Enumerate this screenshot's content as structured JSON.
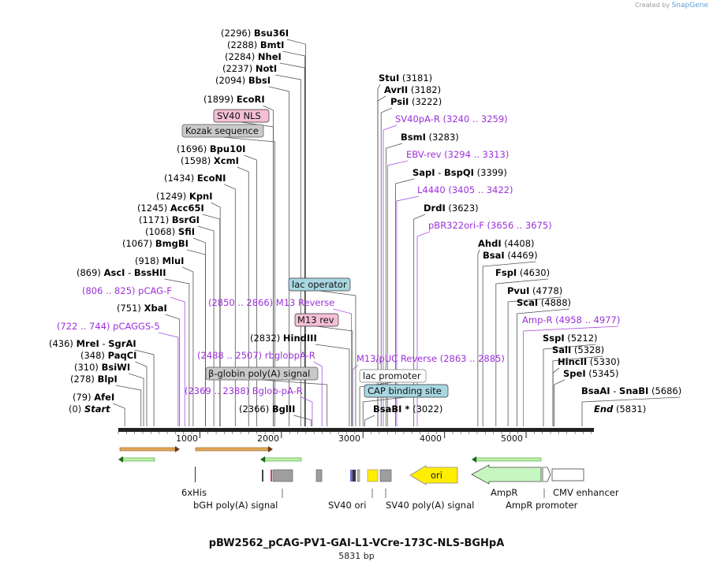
{
  "credit": {
    "prefix": "Created by",
    "brand": "SnapGene"
  },
  "plasmid": {
    "name": "pBW2562_pCAG-PV1-GAI-L1-VCre-173C-NLS-BGHpA",
    "size_label": "5831 bp",
    "length": 5831
  },
  "colors": {
    "enzyme": "#111111",
    "primer": "#9b30d9",
    "primer_line": "#a64ee0",
    "line": "#555555"
  },
  "ticks": [
    "1000",
    "2000",
    "3000",
    "4000",
    "5000"
  ],
  "enzymes": [
    {
      "pos": "(0)",
      "name": "Start",
      "italic": true,
      "bp": 0
    },
    {
      "pos": "(79)",
      "name": "AfeI",
      "bp": 79
    },
    {
      "pos": "(278)",
      "name": "BlpI",
      "bp": 278
    },
    {
      "pos": "(310)",
      "name": "BsiWI",
      "bp": 310
    },
    {
      "pos": "(348)",
      "name": "PaqCI",
      "bp": 348
    },
    {
      "pos": "(436)",
      "name": "MreI",
      "name2": "SgrAI",
      "bp": 436
    },
    {
      "pos": "(751)",
      "name": "XbaI",
      "bp": 751
    },
    {
      "pos": "(869)",
      "name": "AscI",
      "name2": "BssHII",
      "bp": 869
    },
    {
      "pos": "(918)",
      "name": "MluI",
      "bp": 918
    },
    {
      "pos": "(1067)",
      "name": "BmgBI",
      "bp": 1067
    },
    {
      "pos": "(1068)",
      "name": "SfiI",
      "bp": 1068
    },
    {
      "pos": "(1171)",
      "name": "BsrGI",
      "bp": 1171
    },
    {
      "pos": "(1245)",
      "name": "Acc65I",
      "bp": 1245
    },
    {
      "pos": "(1249)",
      "name": "KpnI",
      "bp": 1249
    },
    {
      "pos": "(1434)",
      "name": "EcoNI",
      "bp": 1434
    },
    {
      "pos": "(1598)",
      "name": "XcmI",
      "bp": 1598
    },
    {
      "pos": "(1696)",
      "name": "Bpu10I",
      "bp": 1696
    },
    {
      "pos": "(1899)",
      "name": "EcoRI",
      "bp": 1899
    },
    {
      "pos": "(2094)",
      "name": "BbsI",
      "bp": 2094
    },
    {
      "pos": "(2237)",
      "name": "NotI",
      "bp": 2237
    },
    {
      "pos": "(2284)",
      "name": "NheI",
      "bp": 2284
    },
    {
      "pos": "(2288)",
      "name": "BmtI",
      "bp": 2288
    },
    {
      "pos": "(2296)",
      "name": "Bsu36I",
      "bp": 2296
    },
    {
      "pos": "(2366)",
      "name": "BglII",
      "bp": 2366
    },
    {
      "pos": "(2832)",
      "name": "HindIII",
      "bp": 2832
    },
    {
      "pos": "(3181)",
      "name": "StuI",
      "bp": 3181
    },
    {
      "pos": "(3182)",
      "name": "AvrII",
      "bp": 3182
    },
    {
      "pos": "(3222)",
      "name": "PsiI",
      "bp": 3222
    },
    {
      "pos": "(3283)",
      "name": "BsmI",
      "bp": 3283
    },
    {
      "pos": "(3399)",
      "name": "SapI",
      "name2": "BspQI",
      "bp": 3399
    },
    {
      "pos": "(3623)",
      "name": "DrdI",
      "bp": 3623
    },
    {
      "pos": "(3022)",
      "name": "BsaBI *",
      "bp": 3022
    },
    {
      "pos": "(4408)",
      "name": "AhdI",
      "bp": 4408
    },
    {
      "pos": "(4469)",
      "name": "BsaI",
      "bp": 4469
    },
    {
      "pos": "(4630)",
      "name": "FspI",
      "bp": 4630
    },
    {
      "pos": "(4778)",
      "name": "PvuI",
      "bp": 4778
    },
    {
      "pos": "(4888)",
      "name": "ScaI",
      "bp": 4888
    },
    {
      "pos": "(5212)",
      "name": "SspI",
      "bp": 5212
    },
    {
      "pos": "(5328)",
      "name": "SalI",
      "bp": 5328
    },
    {
      "pos": "(5330)",
      "name": "HincII",
      "bp": 5330
    },
    {
      "pos": "(5345)",
      "name": "SpeI",
      "bp": 5345
    },
    {
      "pos": "(5686)",
      "name": "BsaAI",
      "name2": "SnaBI",
      "bp": 5686
    },
    {
      "pos": "(5831)",
      "name": "End",
      "italic": true,
      "bp": 5831
    }
  ],
  "primers": [
    {
      "range": "(722 .. 744)",
      "name": "pCAGGS-5",
      "bp": 733
    },
    {
      "range": "(806 .. 825)",
      "name": "pCAG-F",
      "bp": 815
    },
    {
      "range": "(2850 .. 2866)",
      "name": "M13 Reverse",
      "bp": 2858
    },
    {
      "range": "(2488 .. 2507)",
      "name": "rbglobpA-R",
      "bp": 2497
    },
    {
      "range": "(2369 .. 2388)",
      "name": "Bglob-pA-R",
      "bp": 2378
    },
    {
      "range": "(3240 .. 3259)",
      "name": "SV40pA-R",
      "bp": 3249
    },
    {
      "range": "(3294 .. 3313)",
      "name": "EBV-rev",
      "bp": 3303
    },
    {
      "range": "(3405 .. 3422)",
      "name": "L4440",
      "bp": 3413
    },
    {
      "range": "(3656 .. 3675)",
      "name": "pBR322ori-F",
      "bp": 3665
    },
    {
      "range": "(2863 .. 2885)",
      "name": "M13/pUC Reverse",
      "bp": 2874
    },
    {
      "range": "(4958 .. 4977)",
      "name": "Amp-R",
      "bp": 4967
    }
  ],
  "feature_boxes": [
    {
      "label": "SV40 NLS",
      "fill": "#f4bfd6",
      "bp": 1900
    },
    {
      "label": "Kozak sequence",
      "fill": "#c9c9c9",
      "bp": 1920
    },
    {
      "label": "lac operator",
      "fill": "#a8d7e2",
      "bp": 2910
    },
    {
      "label": "M13 rev",
      "fill": "#f4bfd6",
      "bp": 2870
    },
    {
      "label": "β-globin poly(A) signal",
      "fill": "#c9c9c9",
      "bp": 2560
    },
    {
      "label": "lac promoter",
      "fill": "#ffffff",
      "bp": 2960
    },
    {
      "label": "CAP binding site",
      "fill": "#a8d7e2",
      "bp": 3000
    }
  ],
  "lower_labels": [
    "6xHis",
    "bGH poly(A) signal",
    "SV40 ori",
    "SV40 poly(A) signal",
    "ori",
    "AmpR",
    "AmpR promoter",
    "CMV enhancer"
  ]
}
